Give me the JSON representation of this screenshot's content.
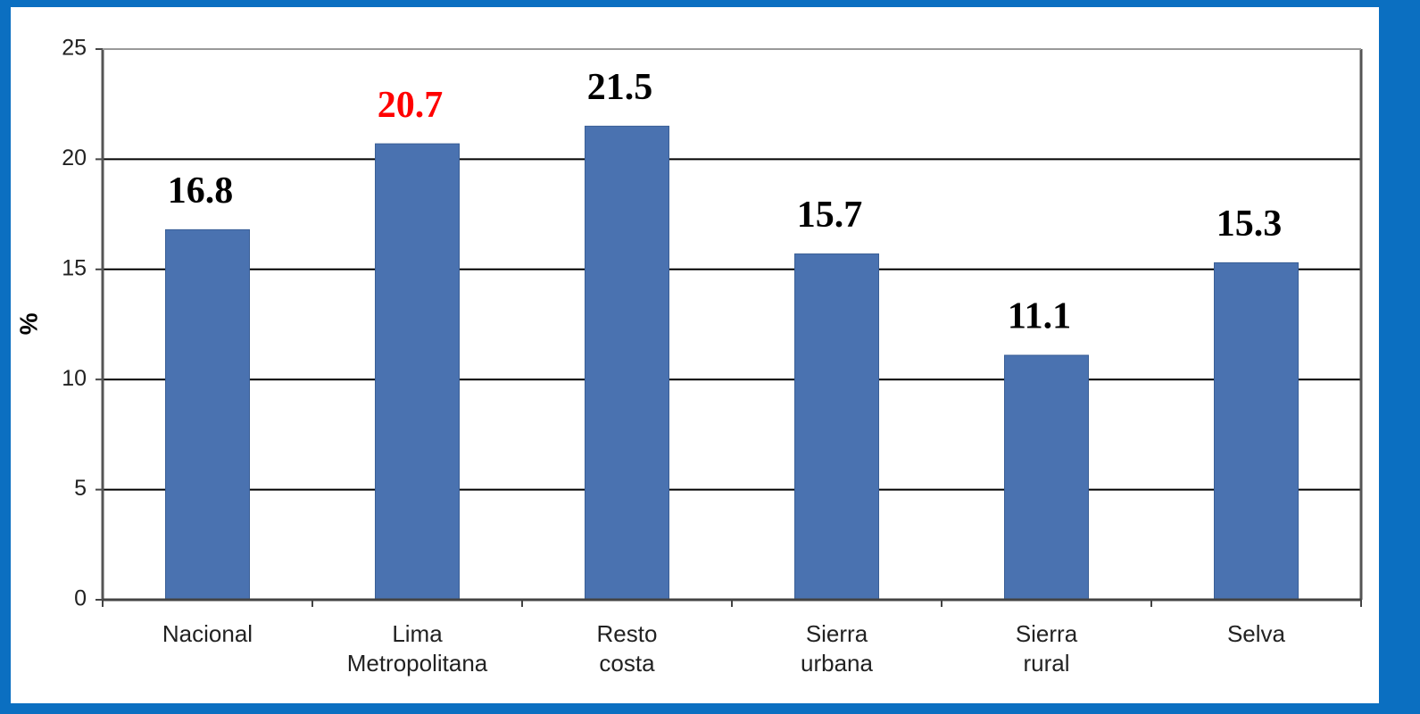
{
  "chart_data": {
    "type": "bar",
    "y_label": "%",
    "categories": [
      [
        "Nacional"
      ],
      [
        "Lima",
        "Metropolitana"
      ],
      [
        "Resto",
        "costa"
      ],
      [
        "Sierra",
        "urbana"
      ],
      [
        "Sierra",
        "rural"
      ],
      [
        "Selva"
      ]
    ],
    "values": [
      16.8,
      20.7,
      21.5,
      15.7,
      11.1,
      15.3
    ],
    "color": "#4a72b0",
    "label_colors": [
      "#000000",
      "#ff0000",
      "#000000",
      "#000000",
      "#000000",
      "#000000"
    ],
    "ylim": [
      0,
      25
    ],
    "yticks": [
      0,
      5,
      10,
      15,
      20,
      25
    ],
    "grid": true
  }
}
